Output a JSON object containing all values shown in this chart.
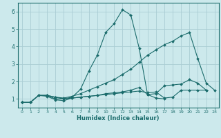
{
  "xlabel": "Humidex (Indice chaleur)",
  "background_color": "#cce9ec",
  "grid_color": "#aacdd4",
  "line_color": "#1a6b6b",
  "xlim": [
    -0.5,
    23.5
  ],
  "ylim": [
    0.5,
    6.5
  ],
  "yticks": [
    1,
    2,
    3,
    4,
    5,
    6
  ],
  "xticks": [
    0,
    1,
    2,
    3,
    4,
    5,
    6,
    7,
    8,
    9,
    10,
    11,
    12,
    13,
    14,
    15,
    16,
    17,
    18,
    19,
    20,
    21,
    22,
    23
  ],
  "lines": [
    {
      "x": [
        0,
        1,
        2,
        3,
        4,
        5,
        6,
        7,
        8,
        9,
        10,
        11,
        12,
        13,
        14,
        15,
        16,
        17,
        18,
        19,
        20,
        21,
        22,
        23
      ],
      "y": [
        0.8,
        0.8,
        1.2,
        1.2,
        1.0,
        1.0,
        1.1,
        1.55,
        2.6,
        3.5,
        4.8,
        5.3,
        6.1,
        5.8,
        3.9,
        1.25,
        1.05,
        1.0,
        null,
        null,
        null,
        null,
        null,
        null
      ]
    },
    {
      "x": [
        0,
        1,
        2,
        3,
        4,
        5,
        6,
        7,
        8,
        9,
        10,
        11,
        12,
        13,
        14,
        15,
        16,
        17,
        18,
        19,
        20,
        21,
        22,
        23
      ],
      "y": [
        0.8,
        0.8,
        1.2,
        1.2,
        1.1,
        1.05,
        1.15,
        1.3,
        1.5,
        1.7,
        1.9,
        2.1,
        2.4,
        2.7,
        3.1,
        3.5,
        3.8,
        4.1,
        4.3,
        4.6,
        4.8,
        3.3,
        1.9,
        1.5
      ]
    },
    {
      "x": [
        0,
        1,
        2,
        3,
        4,
        5,
        6,
        7,
        8,
        9,
        10,
        11,
        12,
        13,
        14,
        15,
        16,
        17,
        18,
        19,
        20,
        21,
        22,
        23
      ],
      "y": [
        0.8,
        0.8,
        1.2,
        1.15,
        0.95,
        0.9,
        1.05,
        1.1,
        1.15,
        1.2,
        1.3,
        1.35,
        1.4,
        1.5,
        1.65,
        1.25,
        1.3,
        1.75,
        1.8,
        1.85,
        2.1,
        1.9,
        1.5,
        null
      ]
    },
    {
      "x": [
        0,
        1,
        2,
        3,
        4,
        5,
        6,
        7,
        8,
        9,
        10,
        11,
        12,
        13,
        14,
        15,
        16,
        17,
        18,
        19,
        20,
        21,
        22,
        23
      ],
      "y": [
        0.8,
        0.8,
        1.2,
        1.2,
        1.1,
        1.0,
        1.05,
        1.1,
        1.15,
        1.2,
        1.25,
        1.3,
        1.35,
        1.4,
        1.45,
        1.35,
        1.4,
        1.05,
        1.1,
        1.5,
        1.5,
        1.5,
        1.5,
        null
      ]
    }
  ]
}
